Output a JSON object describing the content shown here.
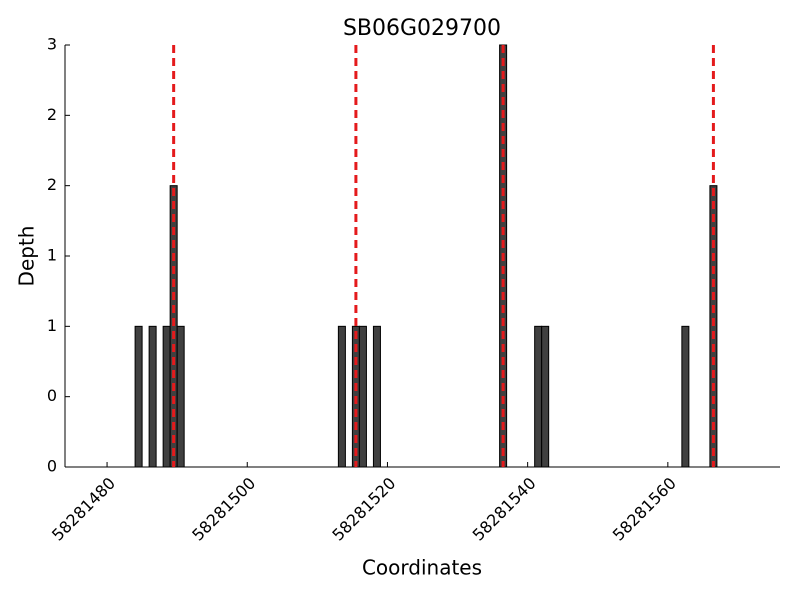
{
  "chart_data": {
    "type": "bar",
    "title": "SB06G029700",
    "x_label": "Coordinates",
    "y_label": "Depth",
    "x": [
      58281484,
      58281486,
      58281488,
      58281489,
      58281490,
      58281513,
      58281515,
      58281516,
      58281518,
      58281536,
      58281541,
      58281542,
      58281562,
      58281566
    ],
    "values": [
      1,
      1,
      1,
      2,
      1,
      1,
      1,
      1,
      1,
      3,
      1,
      1,
      1,
      2
    ],
    "color": "#404040",
    "markers": [
      58281489.5,
      58281515.5,
      58281536.5,
      58281566.5
    ],
    "marker_color": "#e41a1c",
    "xlim": [
      58281474,
      58281576
    ],
    "xticks": [
      58281480,
      58281500,
      58281520,
      58281540,
      58281560
    ],
    "ylim": [
      0,
      3
    ],
    "yticks": [
      0,
      {
        "value": 0.5,
        "label": "0"
      },
      1,
      {
        "value": 1.5,
        "label": "1"
      },
      2,
      {
        "value": 2.5,
        "label": "2"
      },
      3
    ]
  }
}
